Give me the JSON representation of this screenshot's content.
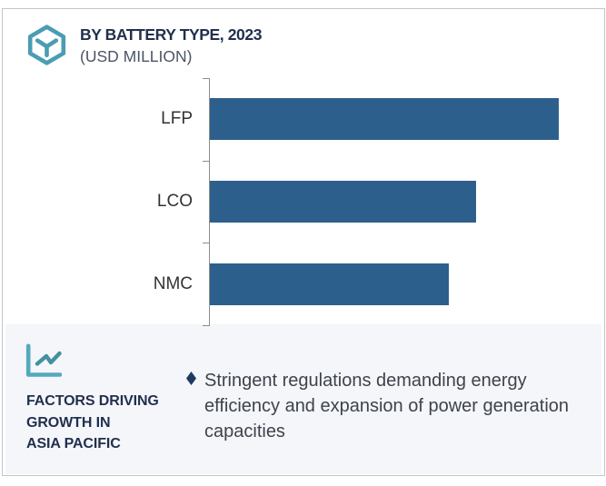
{
  "accent_colors": {
    "bar_blue": "#2d5f8c",
    "icon_teal": "#4a9db2",
    "navy_text": "#22304e",
    "panel_background": "#f4f6fa"
  },
  "header": {
    "icon": "hexagon-cube-icon",
    "title": "BY BATTERY TYPE, 2023",
    "subtitle": "(USD MILLION)"
  },
  "chart_data": {
    "type": "bar",
    "orientation": "horizontal",
    "title": "BY BATTERY TYPE, 2023",
    "subtitle": "(USD MILLION)",
    "categories": [
      "LFP",
      "LCO",
      "NMC"
    ],
    "values": [
      384,
      293,
      263
    ],
    "value_note": "x-axis has no numeric labels; values are relative bar lengths measured in pixels",
    "bar_color": "#2d5f8c",
    "grid": false,
    "legend": false,
    "axis_ticks": 4
  },
  "panel": {
    "icon": "line-chart-icon",
    "heading": "FACTORS DRIVING\nGROWTH IN\nASIA PACIFIC",
    "bullets": [
      {
        "marker": "diamond-bullet-icon",
        "text": "Stringent regulations demanding energy efficiency and expansion of power generation capacities"
      }
    ]
  }
}
